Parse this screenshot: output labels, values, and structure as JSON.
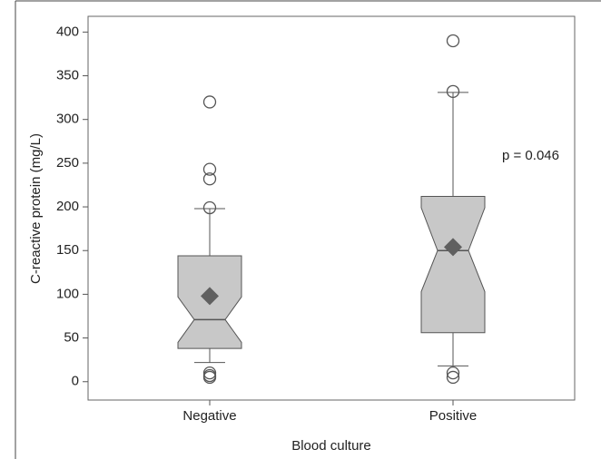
{
  "chart_data": {
    "type": "boxplot",
    "x_label": "Blood culture",
    "y_label": "C-reactive protein (mg/L)",
    "annotation": "p = 0.046",
    "categories": [
      "Negative",
      "Positive"
    ],
    "boxes": [
      {
        "min": 22,
        "q1": 38,
        "notch_low": 45,
        "median": 71,
        "notch_high": 97,
        "q3": 144,
        "max": 198,
        "mean": 98,
        "outliers": [
          320,
          243,
          232,
          199,
          10,
          7,
          5
        ]
      },
      {
        "min": 18,
        "q1": 56,
        "notch_low": 103,
        "median": 150,
        "notch_high": 199,
        "q3": 212,
        "max": 331,
        "mean": 154,
        "outliers": [
          390,
          332,
          10,
          5
        ]
      }
    ],
    "color": "#c8c8c8",
    "mean_color": "#606060",
    "ylim": [
      -21,
      418
    ],
    "yticks": [
      0,
      50,
      100,
      150,
      200,
      250,
      300,
      350,
      400
    ]
  }
}
